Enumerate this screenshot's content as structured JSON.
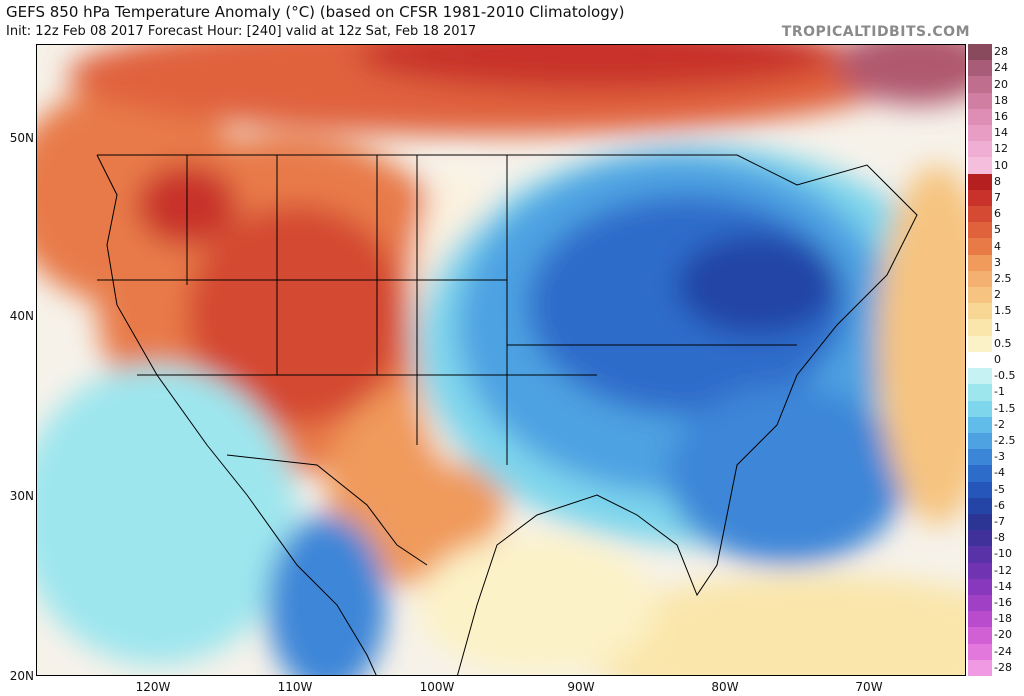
{
  "header": {
    "title": "GEFS 850 hPa Temperature Anomaly (°C) (based on CFSR 1981-2010 Climatology)",
    "subtitle": "Init: 12z Feb 08 2017   Forecast Hour: [240]   valid at 12z Sat, Feb 18 2017",
    "brand": "TROPICALTIDBITS.COM"
  },
  "map": {
    "latitude_labels": [
      "50N",
      "40N",
      "30N",
      "20N"
    ],
    "longitude_labels": [
      "120W",
      "110W",
      "100W",
      "90W",
      "80W",
      "70W"
    ]
  },
  "colorbar": {
    "levels": [
      "28",
      "24",
      "20",
      "18",
      "16",
      "14",
      "12",
      "10",
      "8",
      "7",
      "6",
      "5",
      "4",
      "3",
      "2.5",
      "2",
      "1.5",
      "1",
      "0.5",
      "0",
      "-0.5",
      "-1",
      "-1.5",
      "-2",
      "-2.5",
      "-3",
      "-4",
      "-5",
      "-6",
      "-7",
      "-8",
      "-10",
      "-12",
      "-14",
      "-16",
      "-18",
      "-20",
      "-24",
      "-28"
    ],
    "colors": [
      "#8a4a5e",
      "#a85c78",
      "#c06e8e",
      "#d07ea2",
      "#de8eb4",
      "#e89ec4",
      "#f0aed4",
      "#f4bedc",
      "#b51f1f",
      "#c8322a",
      "#d44a32",
      "#e0623c",
      "#e87a48",
      "#f09a5c",
      "#f4b070",
      "#f6c480",
      "#f8d694",
      "#fae6aa",
      "#fcf2c8",
      "#ffffff",
      "#c6f2f4",
      "#9ee6ee",
      "#7ed6ec",
      "#62bcea",
      "#4ea2e2",
      "#3c86d8",
      "#2e6cca",
      "#2656ba",
      "#2444a6",
      "#2c3494",
      "#40309a",
      "#5832a6",
      "#7034b2",
      "#8838bc",
      "#a040c4",
      "#b84ccc",
      "#d060d4",
      "#e278dc",
      "#f09ae4"
    ]
  }
}
